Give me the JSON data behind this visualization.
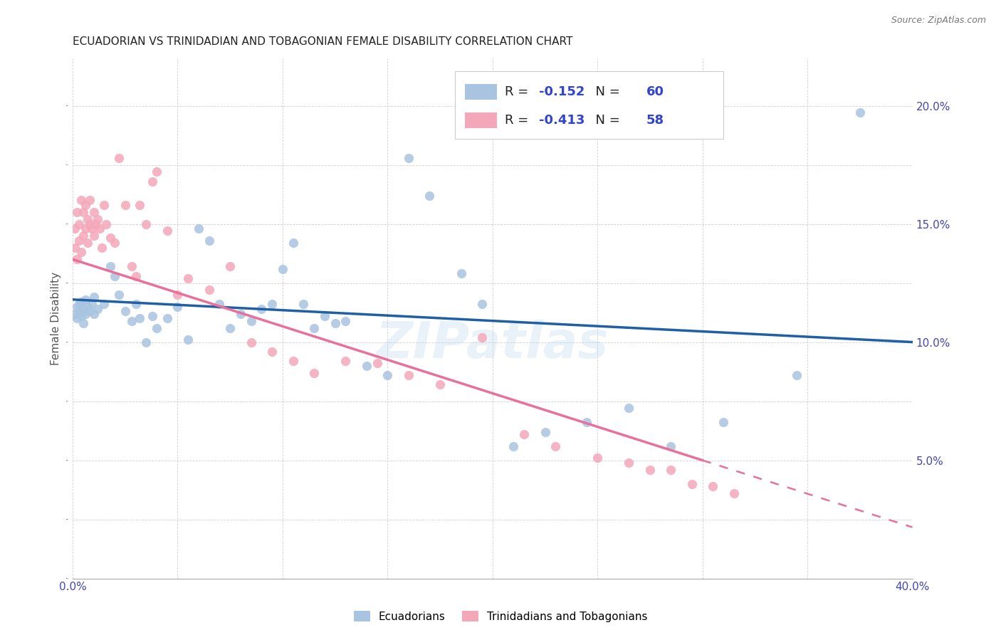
{
  "title": "ECUADORIAN VS TRINIDADIAN AND TOBAGONIAN FEMALE DISABILITY CORRELATION CHART",
  "source": "Source: ZipAtlas.com",
  "ylabel": "Female Disability",
  "xlim": [
    0.0,
    0.4
  ],
  "ylim": [
    0.0,
    0.22
  ],
  "ytick_values": [
    0.0,
    0.05,
    0.1,
    0.15,
    0.2
  ],
  "ytick_labels": [
    "",
    "5.0%",
    "10.0%",
    "15.0%",
    "20.0%"
  ],
  "xtick_values": [
    0.0,
    0.05,
    0.1,
    0.15,
    0.2,
    0.25,
    0.3,
    0.35,
    0.4
  ],
  "blue_R": -0.152,
  "blue_N": 60,
  "pink_R": -0.413,
  "pink_N": 58,
  "blue_color": "#a8c4e0",
  "pink_color": "#f4a7b9",
  "blue_line_color": "#1f5fa6",
  "pink_line_color": "#e8709a",
  "watermark": "ZIPatlas",
  "blue_line_x0": 0.0,
  "blue_line_y0": 0.118,
  "blue_line_x1": 0.4,
  "blue_line_y1": 0.1,
  "pink_line_x0": 0.0,
  "pink_line_y0": 0.135,
  "pink_line_x1": 0.3,
  "pink_line_y1": 0.05,
  "blue_scatter_x": [
    0.001,
    0.002,
    0.002,
    0.003,
    0.003,
    0.004,
    0.004,
    0.005,
    0.005,
    0.006,
    0.006,
    0.007,
    0.008,
    0.009,
    0.01,
    0.01,
    0.012,
    0.015,
    0.018,
    0.02,
    0.022,
    0.025,
    0.028,
    0.03,
    0.032,
    0.035,
    0.038,
    0.04,
    0.045,
    0.05,
    0.055,
    0.06,
    0.065,
    0.07,
    0.075,
    0.08,
    0.085,
    0.09,
    0.095,
    0.1,
    0.105,
    0.11,
    0.115,
    0.12,
    0.125,
    0.13,
    0.14,
    0.15,
    0.16,
    0.17,
    0.185,
    0.195,
    0.21,
    0.225,
    0.245,
    0.265,
    0.285,
    0.31,
    0.345,
    0.375
  ],
  "blue_scatter_y": [
    0.112,
    0.115,
    0.11,
    0.113,
    0.116,
    0.111,
    0.117,
    0.108,
    0.114,
    0.112,
    0.118,
    0.115,
    0.113,
    0.116,
    0.119,
    0.112,
    0.114,
    0.116,
    0.132,
    0.128,
    0.12,
    0.113,
    0.109,
    0.116,
    0.11,
    0.1,
    0.111,
    0.106,
    0.11,
    0.115,
    0.101,
    0.148,
    0.143,
    0.116,
    0.106,
    0.112,
    0.109,
    0.114,
    0.116,
    0.131,
    0.142,
    0.116,
    0.106,
    0.111,
    0.108,
    0.109,
    0.09,
    0.086,
    0.178,
    0.162,
    0.129,
    0.116,
    0.056,
    0.062,
    0.066,
    0.072,
    0.056,
    0.066,
    0.086,
    0.197
  ],
  "pink_scatter_x": [
    0.001,
    0.001,
    0.002,
    0.002,
    0.003,
    0.003,
    0.004,
    0.004,
    0.005,
    0.005,
    0.006,
    0.006,
    0.007,
    0.007,
    0.008,
    0.008,
    0.009,
    0.01,
    0.01,
    0.011,
    0.012,
    0.013,
    0.014,
    0.015,
    0.016,
    0.018,
    0.02,
    0.022,
    0.025,
    0.028,
    0.03,
    0.032,
    0.035,
    0.038,
    0.04,
    0.045,
    0.05,
    0.055,
    0.065,
    0.075,
    0.085,
    0.095,
    0.105,
    0.115,
    0.13,
    0.145,
    0.16,
    0.175,
    0.195,
    0.215,
    0.23,
    0.25,
    0.265,
    0.275,
    0.285,
    0.295,
    0.305,
    0.315
  ],
  "pink_scatter_y": [
    0.14,
    0.148,
    0.135,
    0.155,
    0.143,
    0.15,
    0.138,
    0.16,
    0.145,
    0.155,
    0.148,
    0.158,
    0.142,
    0.152,
    0.16,
    0.15,
    0.148,
    0.145,
    0.155,
    0.15,
    0.152,
    0.148,
    0.14,
    0.158,
    0.15,
    0.144,
    0.142,
    0.178,
    0.158,
    0.132,
    0.128,
    0.158,
    0.15,
    0.168,
    0.172,
    0.147,
    0.12,
    0.127,
    0.122,
    0.132,
    0.1,
    0.096,
    0.092,
    0.087,
    0.092,
    0.091,
    0.086,
    0.082,
    0.102,
    0.061,
    0.056,
    0.051,
    0.049,
    0.046,
    0.046,
    0.04,
    0.039,
    0.036
  ]
}
